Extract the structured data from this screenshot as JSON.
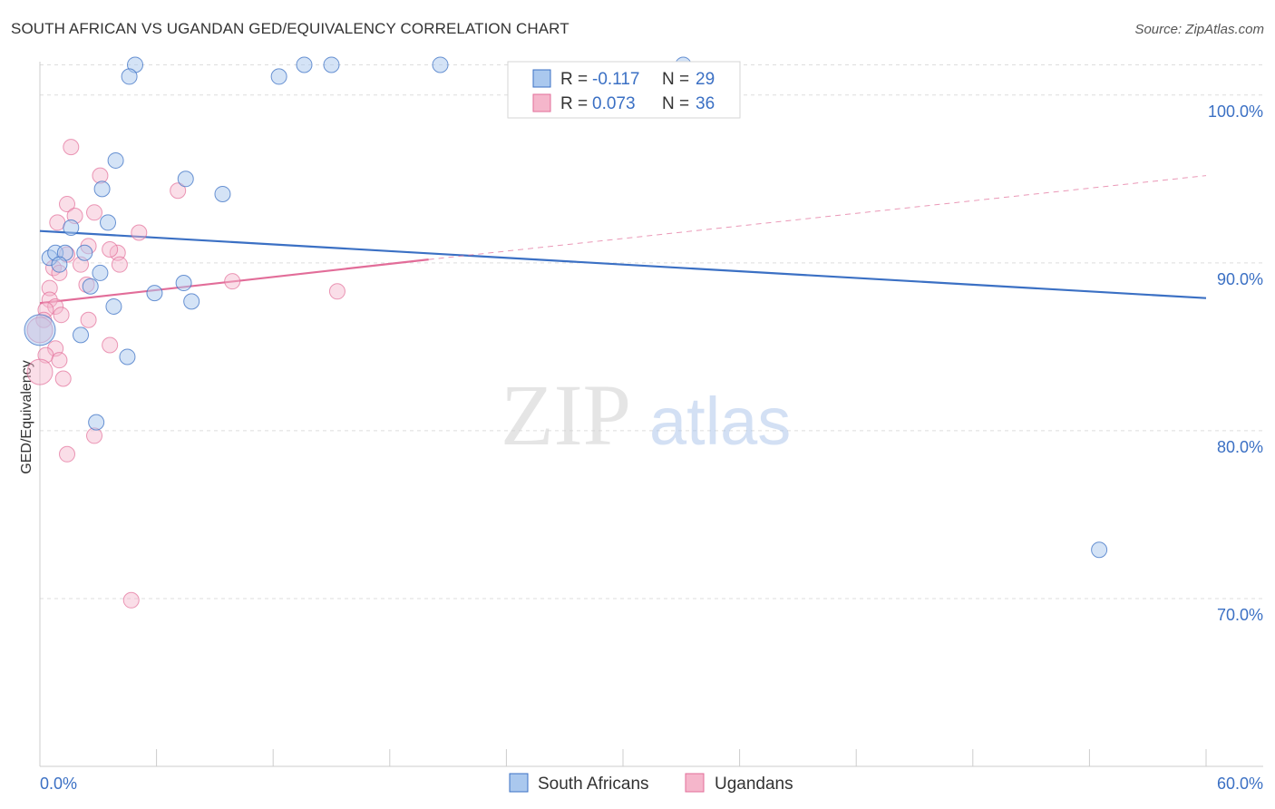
{
  "header": {
    "title": "SOUTH AFRICAN VS UGANDAN GED/EQUIVALENCY CORRELATION CHART",
    "source": "Source: ZipAtlas.com"
  },
  "watermark": {
    "zip": "ZIP",
    "atlas": "atlas"
  },
  "colors": {
    "blue": "#3b70c4",
    "blue_fill": "#aac8ee",
    "pink": "#e26d99",
    "pink_fill": "#f5b6cb",
    "grid": "#dddddd"
  },
  "legend": {
    "r_label": "R = ",
    "n_label": "N = ",
    "series": [
      {
        "name": "South Africans",
        "r": "-0.117",
        "n": "29"
      },
      {
        "name": "Ugandans",
        "r": "0.073",
        "n": "36"
      }
    ]
  },
  "chart_data": {
    "type": "scatter",
    "title": "SOUTH AFRICAN VS UGANDAN GED/EQUIVALENCY CORRELATION CHART",
    "xlabel": "",
    "ylabel": "GED/Equivalency",
    "xlim": [
      0,
      60
    ],
    "ylim": [
      60,
      103.5
    ],
    "x_tick_labels": [
      "0.0%",
      "60.0%"
    ],
    "y_ticks": [
      {
        "value": 70,
        "label": "70.0%"
      },
      {
        "value": 80,
        "label": "80.0%"
      },
      {
        "value": 90,
        "label": "90.0%"
      },
      {
        "value": 100,
        "label": "100.0%"
      }
    ],
    "grid": true,
    "series": [
      {
        "name": "South Africans",
        "color": "#3b70c4",
        "points": [
          [
            4.9,
            101.8
          ],
          [
            4.6,
            101.1
          ],
          [
            12.3,
            101.1
          ],
          [
            13.6,
            101.8
          ],
          [
            15.0,
            101.8
          ],
          [
            20.6,
            101.8
          ],
          [
            33.1,
            101.8
          ],
          [
            3.9,
            96.1
          ],
          [
            3.2,
            94.4
          ],
          [
            7.5,
            95.0
          ],
          [
            9.4,
            94.1
          ],
          [
            3.5,
            92.4
          ],
          [
            1.6,
            92.1
          ],
          [
            0.5,
            90.3
          ],
          [
            0.8,
            90.6
          ],
          [
            1.3,
            90.6
          ],
          [
            2.3,
            90.6
          ],
          [
            1.0,
            89.9
          ],
          [
            3.1,
            89.4
          ],
          [
            2.6,
            88.6
          ],
          [
            7.4,
            88.8
          ],
          [
            5.9,
            88.2
          ],
          [
            7.8,
            87.7
          ],
          [
            3.8,
            87.4
          ],
          [
            0.0,
            86.0
          ],
          [
            2.1,
            85.7
          ],
          [
            4.5,
            84.4
          ],
          [
            2.9,
            80.5
          ],
          [
            54.5,
            72.9
          ]
        ],
        "trend": {
          "x": [
            0,
            60
          ],
          "y": [
            91.9,
            87.9
          ]
        }
      },
      {
        "name": "Ugandans",
        "color": "#e26d99",
        "points": [
          [
            1.6,
            96.9
          ],
          [
            3.1,
            95.2
          ],
          [
            7.1,
            94.3
          ],
          [
            1.4,
            93.5
          ],
          [
            2.8,
            93.0
          ],
          [
            1.8,
            92.8
          ],
          [
            0.9,
            92.4
          ],
          [
            5.1,
            91.8
          ],
          [
            2.5,
            91.0
          ],
          [
            4.0,
            90.6
          ],
          [
            4.1,
            89.9
          ],
          [
            2.1,
            89.9
          ],
          [
            3.6,
            90.8
          ],
          [
            1.4,
            90.5
          ],
          [
            0.7,
            89.7
          ],
          [
            1.0,
            89.4
          ],
          [
            0.5,
            88.5
          ],
          [
            2.4,
            88.7
          ],
          [
            9.9,
            88.9
          ],
          [
            15.3,
            88.3
          ],
          [
            0.5,
            87.8
          ],
          [
            0.8,
            87.4
          ],
          [
            0.3,
            87.2
          ],
          [
            1.1,
            86.9
          ],
          [
            0.2,
            86.6
          ],
          [
            2.5,
            86.6
          ],
          [
            0.0,
            86.0
          ],
          [
            0.8,
            84.9
          ],
          [
            3.6,
            85.1
          ],
          [
            0.3,
            84.5
          ],
          [
            1.0,
            84.2
          ],
          [
            1.2,
            83.1
          ],
          [
            0.0,
            83.5
          ],
          [
            1.4,
            78.6
          ],
          [
            2.8,
            79.7
          ],
          [
            4.7,
            69.9
          ]
        ],
        "trend": {
          "x": [
            0,
            20
          ],
          "y": [
            87.6,
            90.2
          ]
        },
        "trend_extension": {
          "x": [
            20,
            60
          ],
          "y": [
            90.2,
            95.2
          ]
        }
      }
    ]
  }
}
